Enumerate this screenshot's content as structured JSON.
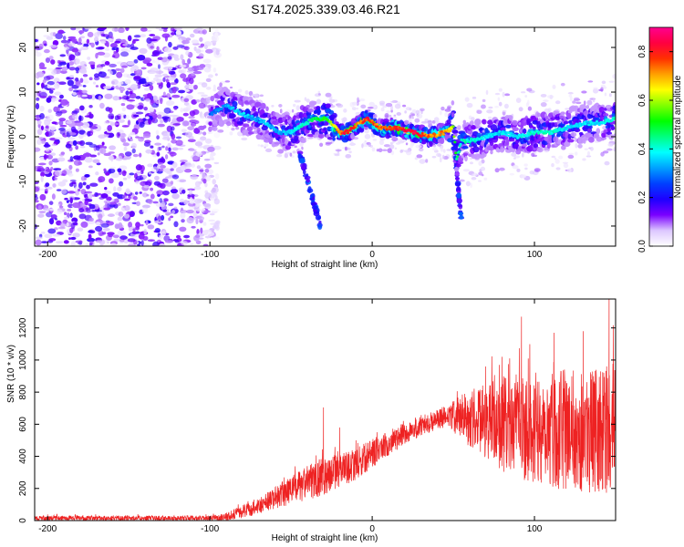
{
  "title": "S174.2025.339.03.46.R21",
  "colors": {
    "snr_line": "#ee2222",
    "ridge_hot": "#ff2020",
    "ridge_mid": "#00e6ff",
    "ridge_low": "#1030ff",
    "noise": "#6a00e0"
  },
  "chart_data": [
    {
      "type": "heatmap",
      "xlabel": "Height of straight line (km)",
      "ylabel": "Frequency (Hz)",
      "xlim": [
        -208,
        150
      ],
      "ylim": [
        -24.5,
        24.5
      ],
      "xticks": [
        -200,
        -100,
        0,
        100
      ],
      "yticks": [
        -20,
        -10,
        0,
        10,
        20
      ],
      "colorbar": {
        "label": "Normalized spectral amplitude",
        "range": [
          0,
          0.9
        ],
        "ticks": [
          "0.0",
          "0.2",
          "0.4",
          "0.6",
          "0.8"
        ],
        "colors": [
          "#ffffff",
          "#dcc7ff",
          "#7a00ff",
          "#1e00ff",
          "#0040ff",
          "#00a0ff",
          "#00ffff",
          "#00ff80",
          "#00ff00",
          "#80ff00",
          "#ffff00",
          "#ffa000",
          "#ff3000",
          "#ff0040",
          "#ff0090"
        ]
      },
      "noise_region": {
        "x": [
          -208,
          -95
        ],
        "freq": [
          -24.5,
          24.5
        ],
        "amplitude": 0.12
      },
      "ridge": {
        "x": [
          -100,
          -90,
          -80,
          -72,
          -65,
          -58,
          -50,
          -42,
          -35,
          -28,
          -20,
          -15,
          -8,
          -3,
          5,
          15,
          25,
          35,
          45,
          50,
          52,
          55,
          60,
          70,
          80,
          90,
          100,
          110,
          120,
          130,
          140,
          150
        ],
        "freq": [
          5,
          7,
          5,
          4,
          3,
          1,
          1,
          3,
          4,
          4,
          1,
          1,
          3,
          4,
          2,
          2,
          1,
          0,
          1,
          2,
          -5,
          -1,
          -1,
          0,
          1,
          0,
          1,
          1,
          2,
          3,
          3,
          4
        ],
        "amplitude": [
          0.3,
          0.35,
          0.4,
          0.35,
          0.4,
          0.35,
          0.4,
          0.45,
          0.5,
          0.55,
          0.8,
          0.9,
          0.75,
          0.85,
          0.8,
          0.85,
          0.9,
          0.8,
          0.75,
          0.65,
          0.5,
          0.45,
          0.45,
          0.4,
          0.4,
          0.4,
          0.45,
          0.45,
          0.4,
          0.4,
          0.4,
          0.45
        ]
      },
      "branches": [
        {
          "x": [
            -45,
            -38,
            -32
          ],
          "freq": [
            -3,
            -12,
            -20
          ]
        },
        {
          "x": [
            51,
            53,
            55
          ],
          "freq": [
            -2,
            -12,
            -18
          ]
        }
      ]
    },
    {
      "type": "line",
      "xlabel": "Height of straight line (km)",
      "ylabel": "SNR (10 * v/v)",
      "xlim": [
        -208,
        150
      ],
      "ylim": [
        0,
        1380
      ],
      "xticks": [
        -200,
        -100,
        0,
        100
      ],
      "yticks": [
        0,
        200,
        400,
        600,
        800,
        1000,
        1200
      ],
      "series": [
        {
          "name": "SNR",
          "x": [
            -208,
            -150,
            -100,
            -90,
            -80,
            -70,
            -60,
            -50,
            -40,
            -30,
            -20,
            -10,
            0,
            10,
            20,
            30,
            40,
            50,
            60,
            70,
            80,
            90,
            100,
            110,
            120,
            130,
            140,
            150
          ],
          "mean": [
            15,
            15,
            15,
            25,
            55,
            90,
            140,
            190,
            230,
            280,
            310,
            350,
            420,
            480,
            540,
            590,
            630,
            650,
            640,
            620,
            600,
            590,
            580,
            580,
            560,
            560,
            560,
            580
          ],
          "spread": [
            15,
            15,
            15,
            25,
            40,
            50,
            70,
            90,
            110,
            120,
            100,
            100,
            90,
            80,
            70,
            70,
            60,
            100,
            180,
            240,
            300,
            330,
            350,
            370,
            380,
            380,
            400,
            400
          ],
          "peaks": [
            [
              -30,
              705
            ],
            [
              -20,
              580
            ],
            [
              -10,
              500
            ],
            [
              3,
              550
            ],
            [
              70,
              960
            ],
            [
              80,
              1020
            ],
            [
              92,
              1270
            ],
            [
              112,
              1170
            ],
            [
              130,
              1180
            ],
            [
              146,
              1380
            ]
          ]
        }
      ]
    }
  ]
}
